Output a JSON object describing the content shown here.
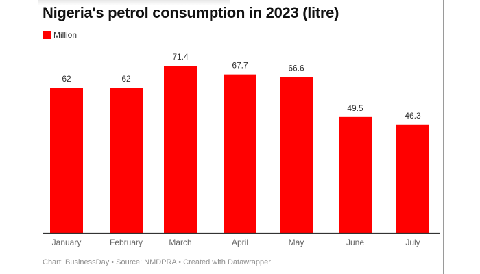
{
  "chart_data": {
    "type": "bar",
    "title": "Nigeria's petrol consumption in 2023 (litre)",
    "legend": {
      "label": "Million",
      "placement": "top-left"
    },
    "categories": [
      "January",
      "February",
      "March",
      "April",
      "May",
      "June",
      "July"
    ],
    "series": [
      {
        "name": "Million",
        "values": [
          62,
          62,
          71.4,
          67.7,
          66.6,
          49.5,
          46.3
        ]
      }
    ],
    "color": "#ff0000",
    "ylim": [
      0,
      71.4
    ],
    "grid": false,
    "data_labels": true
  },
  "footer": "Chart: BusinessDay • Source: NMDPRA • Created with Datawrapper"
}
